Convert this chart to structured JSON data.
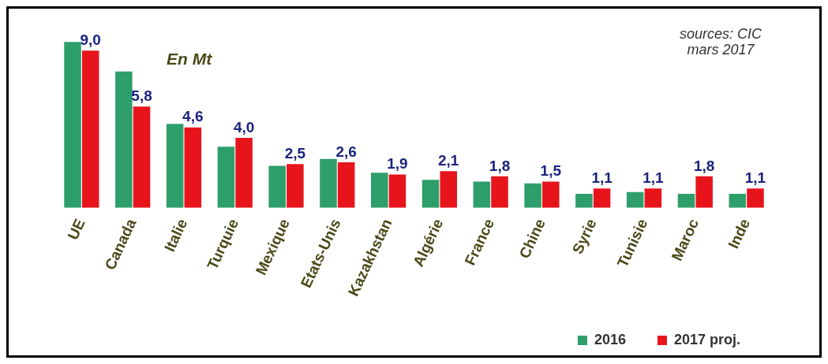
{
  "chart_data": {
    "type": "bar",
    "categories": [
      "UE",
      "Canada",
      "Italie",
      "Turquie",
      "Mexique",
      "Etats-Unis",
      "Kazakhstan",
      "Algérie",
      "France",
      "Chine",
      "Syrie",
      "Tunisie",
      "Maroc",
      "Inde"
    ],
    "series": [
      {
        "name": "2016",
        "color": "#2e9e6b",
        "values": [
          9.5,
          7.8,
          4.8,
          3.5,
          2.4,
          2.8,
          2.0,
          1.6,
          1.5,
          1.4,
          0.8,
          0.9,
          0.8,
          0.8
        ]
      },
      {
        "name": "2017 proj.",
        "color": "#e8141c",
        "values": [
          9.0,
          5.8,
          4.6,
          4.0,
          2.5,
          2.6,
          1.9,
          2.1,
          1.8,
          1.5,
          1.1,
          1.1,
          1.8,
          1.1
        ],
        "value_labels": [
          "9,0",
          "5,8",
          "4,6",
          "4,0",
          "2,5",
          "2,6",
          "1,9",
          "2,1",
          "1,8",
          "1,5",
          "1,1",
          "1,1",
          "1,8",
          "1,1"
        ]
      }
    ],
    "ylim": [
      0,
      9.6
    ],
    "tick_labels": "x",
    "legend": "bottom right",
    "annotations": [
      "En Mt",
      "sources: CIC mars 2017"
    ]
  }
}
